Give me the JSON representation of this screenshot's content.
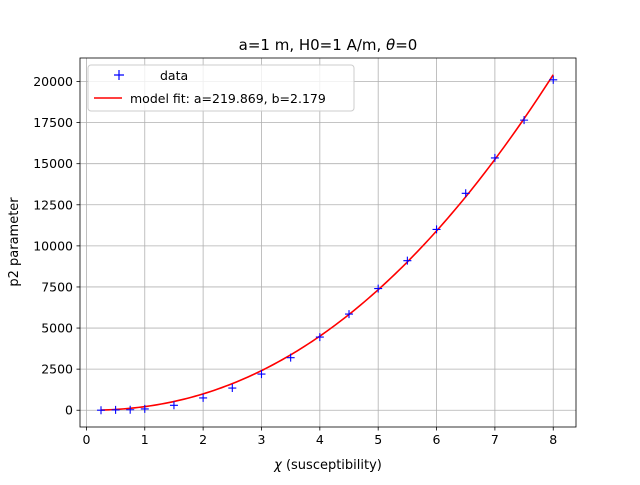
{
  "chart_data": {
    "type": "line",
    "title_parts": [
      "a=1 m, H0=1 A/m, ",
      "θ",
      "=0"
    ],
    "xlabel_parts": [
      "χ",
      " (susceptibility)"
    ],
    "ylabel": "p2 parameter",
    "xlim": [
      -0.11,
      8.39
    ],
    "ylim": [
      -1020,
      21430
    ],
    "xticks": [
      0,
      1,
      2,
      3,
      4,
      5,
      6,
      7,
      8
    ],
    "xtick_labels": [
      "0",
      "1",
      "2",
      "3",
      "4",
      "5",
      "6",
      "7",
      "8"
    ],
    "yticks": [
      0,
      2500,
      5000,
      7500,
      10000,
      12500,
      15000,
      17500,
      20000
    ],
    "ytick_labels": [
      "0",
      "2500",
      "5000",
      "7500",
      "10000",
      "12500",
      "15000",
      "17500",
      "20000"
    ],
    "grid": true,
    "legend_position": "upper-left",
    "series": [
      {
        "name": "data",
        "style": "markers",
        "marker": "+",
        "color": "#0000ff",
        "x": [
          0.25,
          0.5,
          0.75,
          1.0,
          1.5,
          2.0,
          2.5,
          3.0,
          3.5,
          4.0,
          4.5,
          5.0,
          5.5,
          6.0,
          6.5,
          7.0,
          7.5,
          8.0
        ],
        "y": [
          0,
          20,
          30,
          80,
          300,
          750,
          1350,
          2200,
          3200,
          4450,
          5850,
          7400,
          9100,
          11000,
          13200,
          15350,
          17650,
          20100
        ]
      },
      {
        "name": "model fit: a=219.869, b=2.179",
        "style": "line",
        "color": "#ff0000",
        "model": {
          "a": 219.869,
          "b": 2.179
        },
        "x_range": [
          0.25,
          8.0
        ]
      }
    ]
  }
}
